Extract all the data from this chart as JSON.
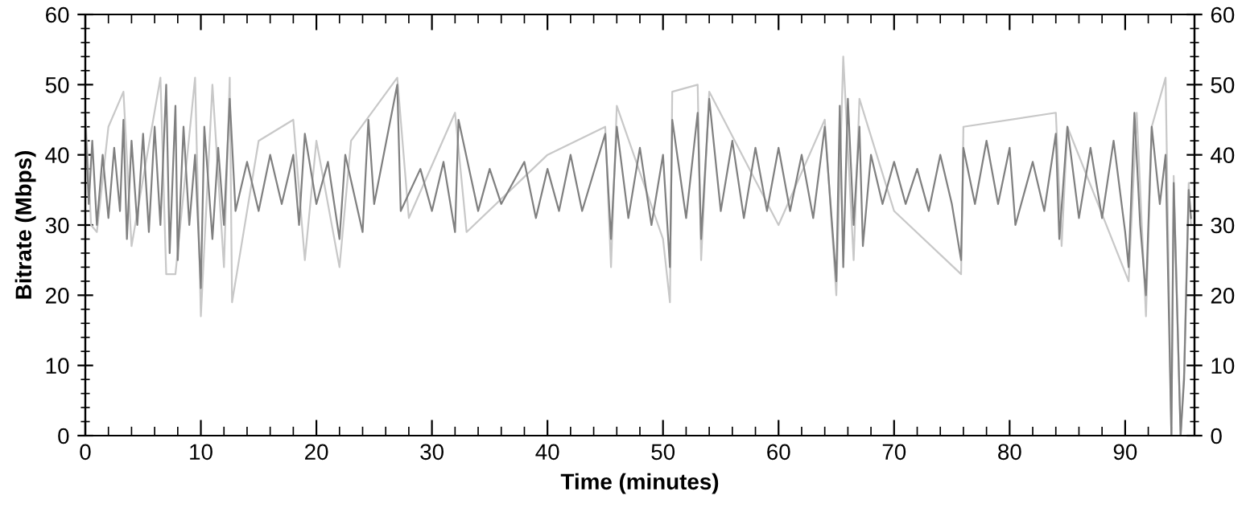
{
  "chart_data": {
    "type": "line",
    "xlabel": "Time (minutes)",
    "ylabel": "Bitrate (Mbps)",
    "xlim": [
      0,
      96
    ],
    "xticks": [
      0,
      10,
      20,
      30,
      40,
      50,
      60,
      70,
      80,
      90
    ],
    "ylim": [
      0,
      60
    ],
    "yticks": [
      0,
      10,
      20,
      30,
      40,
      50,
      60
    ],
    "y2lim": [
      0,
      60
    ],
    "y2ticks": [
      0,
      10,
      20,
      30,
      40,
      50,
      60
    ],
    "grid": false,
    "marker": "none",
    "line_style": "solid",
    "series": [
      {
        "color": "#c8c8c8",
        "x": [
          0,
          0.5,
          1,
          2,
          3.3,
          4,
          6.5,
          7,
          7.8,
          9.5,
          10,
          11,
          12,
          12.5,
          12.7,
          15,
          18,
          19,
          20,
          22,
          23,
          27,
          28,
          32,
          33,
          40,
          45,
          45.5,
          46,
          50,
          50.6,
          50.8,
          53,
          53.3,
          54,
          60,
          64,
          65,
          65.6,
          66.5,
          67,
          70,
          75.8,
          76,
          84,
          84.5,
          85,
          90.3,
          91,
          91.8,
          92.3,
          93.5,
          94,
          94.2,
          94.8,
          95.1,
          95.5,
          95.7
        ],
        "values": [
          46,
          30,
          29,
          44,
          49,
          27,
          51,
          23,
          23,
          51,
          17,
          50,
          24,
          51,
          19,
          42,
          45,
          25,
          42,
          24,
          42,
          51,
          31,
          46,
          29,
          40,
          44,
          24,
          47,
          28,
          19,
          49,
          50,
          25,
          49,
          30,
          45,
          20,
          54,
          25,
          48,
          32,
          23,
          44,
          46,
          27,
          44,
          22,
          46,
          17,
          44,
          51,
          0,
          37,
          0,
          9,
          36,
          30
        ]
      },
      {
        "color": "#808080",
        "x": [
          0,
          0.3,
          0.6,
          1,
          1.5,
          2,
          2.5,
          3,
          3.3,
          3.6,
          4,
          4.5,
          5,
          5.5,
          6,
          6.5,
          7,
          7.3,
          7.8,
          8,
          8.5,
          9,
          9.5,
          10,
          10.3,
          11,
          11.5,
          12,
          12.5,
          13,
          14,
          15,
          16,
          17,
          18,
          18.5,
          19,
          20,
          21,
          22,
          22.5,
          24,
          24.5,
          25,
          27,
          27.3,
          29,
          30,
          31,
          32,
          32.3,
          34,
          35,
          36,
          38,
          39,
          40,
          41,
          42,
          43,
          45,
          45.5,
          46,
          47,
          48,
          49,
          50,
          50.6,
          50.8,
          52,
          53,
          53.3,
          54,
          55,
          56,
          57,
          58,
          59,
          60,
          61,
          62,
          63,
          64,
          65,
          65.3,
          65.6,
          66,
          66.5,
          67,
          67.3,
          68,
          69,
          70,
          71,
          72,
          73,
          74,
          75,
          75.8,
          76,
          77,
          78,
          79,
          80,
          80.5,
          82,
          83,
          84,
          84.3,
          85,
          86,
          87,
          88,
          89,
          90,
          90.3,
          90.8,
          91.3,
          91.8,
          92.3,
          93,
          93.5,
          94,
          94.2,
          94.8,
          95.1,
          95.5,
          95.7
        ],
        "values": [
          45,
          33,
          42,
          30,
          40,
          31,
          41,
          32,
          45,
          28,
          42,
          30,
          43,
          29,
          44,
          30,
          50,
          26,
          47,
          25,
          44,
          30,
          40,
          21,
          44,
          28,
          41,
          30,
          48,
          32,
          39,
          32,
          40,
          33,
          40,
          30,
          43,
          33,
          39,
          28,
          40,
          29,
          45,
          33,
          50,
          32,
          38,
          32,
          39,
          29,
          45,
          32,
          38,
          33,
          39,
          31,
          38,
          32,
          40,
          32,
          43,
          28,
          44,
          31,
          41,
          30,
          40,
          24,
          45,
          31,
          46,
          28,
          48,
          32,
          42,
          31,
          41,
          32,
          41,
          32,
          40,
          31,
          44,
          22,
          47,
          24,
          48,
          30,
          44,
          27,
          40,
          33,
          39,
          33,
          38,
          32,
          40,
          33,
          25,
          41,
          33,
          42,
          33,
          41,
          30,
          39,
          32,
          43,
          28,
          44,
          31,
          41,
          31,
          42,
          29,
          24,
          46,
          30,
          20,
          44,
          33,
          40,
          0,
          36,
          0,
          8,
          35,
          31
        ]
      }
    ]
  }
}
